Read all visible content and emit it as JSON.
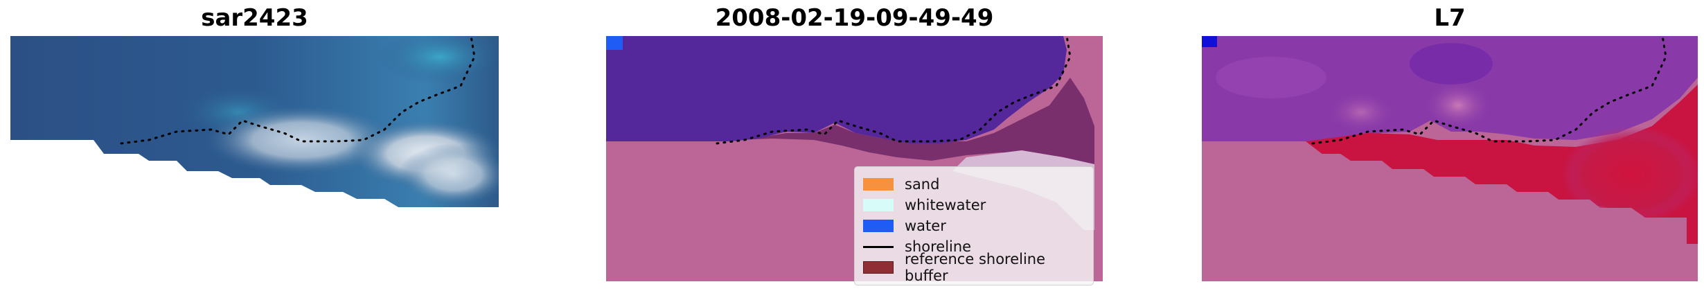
{
  "panels": [
    {
      "title": "sar2423"
    },
    {
      "title": "2008-02-19-09-49-49"
    },
    {
      "title": "L7"
    }
  ],
  "legend": {
    "items": [
      {
        "label": "sand",
        "color": "#f5913f",
        "kind": "patch"
      },
      {
        "label": "whitewater",
        "color": "#d6fbf8",
        "kind": "patch"
      },
      {
        "label": "water",
        "color": "#1f5cf5",
        "kind": "patch"
      },
      {
        "label": "shoreline",
        "color": "#000000",
        "kind": "line"
      },
      {
        "label": "reference shoreline buffer",
        "color": "#8f2e34",
        "kind": "patch"
      }
    ]
  },
  "colors": {
    "background_mask": "#bc6697",
    "water_class": "#54279a",
    "buffer_accent": "#c91441",
    "shoreline_dots": "#000000"
  }
}
